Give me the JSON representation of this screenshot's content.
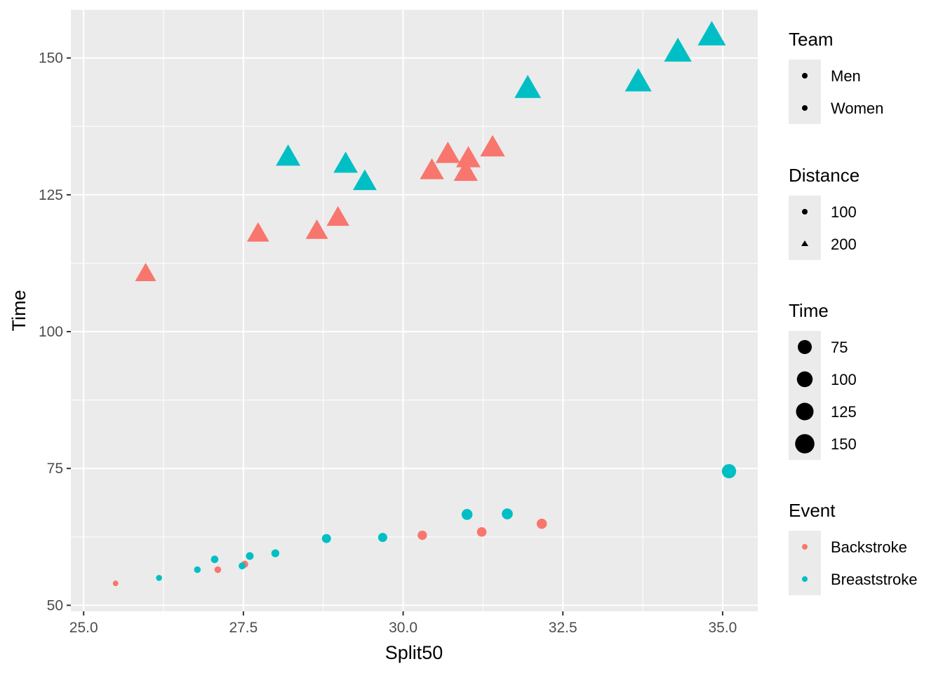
{
  "chart_data": {
    "type": "scatter",
    "title": "",
    "xlabel": "Split50",
    "ylabel": "Time",
    "xlim": [
      24.8,
      35.55
    ],
    "ylim": [
      48.9,
      158.8
    ],
    "x_ticks": [
      25.0,
      27.5,
      30.0,
      32.5,
      35.0
    ],
    "x_tick_labels": [
      "25.0",
      "27.5",
      "30.0",
      "32.5",
      "35.0"
    ],
    "y_ticks": [
      50,
      75,
      100,
      125,
      150
    ],
    "y_tick_labels": [
      "50",
      "75",
      "100",
      "125",
      "150"
    ],
    "grid": true,
    "legend_position": "right",
    "legends": [
      {
        "title": "Team",
        "type": "shape",
        "entries": [
          {
            "label": "Men",
            "shape": "circle"
          },
          {
            "label": "Women",
            "shape": "circle"
          }
        ]
      },
      {
        "title": "Distance",
        "type": "shape",
        "entries": [
          {
            "label": "100",
            "shape": "circle"
          },
          {
            "label": "200",
            "shape": "triangle"
          }
        ]
      },
      {
        "title": "Time",
        "type": "size",
        "entries": [
          {
            "label": "75",
            "value": 75
          },
          {
            "label": "100",
            "value": 100
          },
          {
            "label": "125",
            "value": 125
          },
          {
            "label": "150",
            "value": 150
          }
        ]
      },
      {
        "title": "Event",
        "type": "color",
        "entries": [
          {
            "label": "Backstroke",
            "color": "#F8766D"
          },
          {
            "label": "Breaststroke",
            "color": "#00BFC4"
          }
        ]
      }
    ],
    "colors": {
      "Backstroke": "#F8766D",
      "Breaststroke": "#00BFC4"
    },
    "series": [
      {
        "name": "Backstroke",
        "points": [
          {
            "x": 25.5,
            "y": 54.0,
            "distance": 100
          },
          {
            "x": 27.1,
            "y": 56.5,
            "distance": 100
          },
          {
            "x": 27.52,
            "y": 57.5,
            "distance": 100
          },
          {
            "x": 30.3,
            "y": 62.8,
            "distance": 100
          },
          {
            "x": 31.23,
            "y": 63.4,
            "distance": 100
          },
          {
            "x": 32.17,
            "y": 64.9,
            "distance": 100
          },
          {
            "x": 25.97,
            "y": 110.5,
            "distance": 200
          },
          {
            "x": 27.73,
            "y": 117.8,
            "distance": 200
          },
          {
            "x": 28.65,
            "y": 118.3,
            "distance": 200
          },
          {
            "x": 28.98,
            "y": 120.7,
            "distance": 200
          },
          {
            "x": 30.45,
            "y": 129.3,
            "distance": 200
          },
          {
            "x": 30.7,
            "y": 132.3,
            "distance": 200
          },
          {
            "x": 30.98,
            "y": 129.0,
            "distance": 200
          },
          {
            "x": 31.02,
            "y": 131.5,
            "distance": 200
          },
          {
            "x": 31.4,
            "y": 133.5,
            "distance": 200
          }
        ]
      },
      {
        "name": "Breaststroke",
        "points": [
          {
            "x": 26.18,
            "y": 55.0,
            "distance": 100
          },
          {
            "x": 26.78,
            "y": 56.5,
            "distance": 100
          },
          {
            "x": 27.05,
            "y": 58.4,
            "distance": 100
          },
          {
            "x": 27.48,
            "y": 57.2,
            "distance": 100
          },
          {
            "x": 27.6,
            "y": 59.0,
            "distance": 100
          },
          {
            "x": 28.0,
            "y": 59.5,
            "distance": 100
          },
          {
            "x": 28.8,
            "y": 62.2,
            "distance": 100
          },
          {
            "x": 29.68,
            "y": 62.4,
            "distance": 100
          },
          {
            "x": 31.0,
            "y": 66.6,
            "distance": 100
          },
          {
            "x": 31.63,
            "y": 66.7,
            "distance": 100
          },
          {
            "x": 35.1,
            "y": 74.5,
            "distance": 100
          },
          {
            "x": 28.2,
            "y": 131.8,
            "distance": 200
          },
          {
            "x": 29.1,
            "y": 130.5,
            "distance": 200
          },
          {
            "x": 29.4,
            "y": 127.3,
            "distance": 200
          },
          {
            "x": 31.95,
            "y": 144.3,
            "distance": 200
          },
          {
            "x": 33.68,
            "y": 145.5,
            "distance": 200
          },
          {
            "x": 34.3,
            "y": 151.0,
            "distance": 200
          },
          {
            "x": 34.83,
            "y": 154.0,
            "distance": 200
          }
        ]
      }
    ]
  }
}
